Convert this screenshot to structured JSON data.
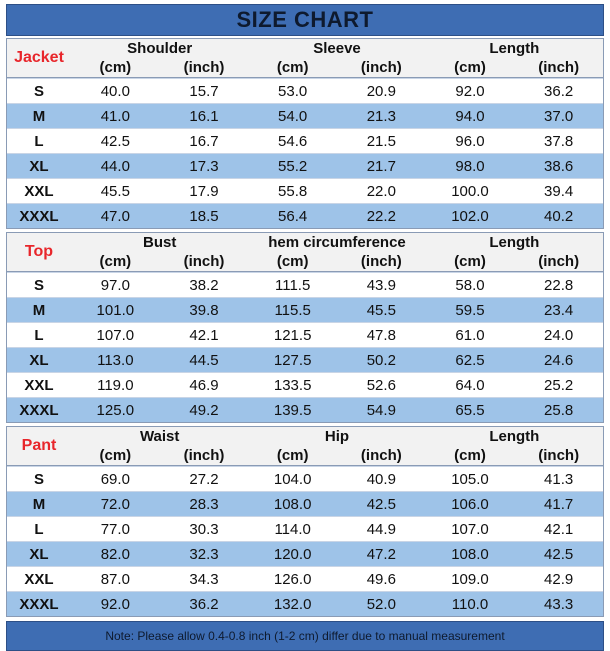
{
  "title": "SIZE CHART",
  "colors": {
    "header_blue": "#3e6db3",
    "row_blue": "#9ec3e8",
    "section_red": "#e8262b"
  },
  "sections": [
    {
      "label": "Jacket",
      "groups": [
        {
          "name": "Shoulder",
          "unit1": "(cm)",
          "unit2": "(inch)"
        },
        {
          "name": "Sleeve",
          "unit1": "(cm)",
          "unit2": "(inch)"
        },
        {
          "name": "Length",
          "unit1": "(cm)",
          "unit2": "(inch)"
        }
      ],
      "rows": [
        [
          "S",
          "40.0",
          "15.7",
          "53.0",
          "20.9",
          "92.0",
          "36.2"
        ],
        [
          "M",
          "41.0",
          "16.1",
          "54.0",
          "21.3",
          "94.0",
          "37.0"
        ],
        [
          "L",
          "42.5",
          "16.7",
          "54.6",
          "21.5",
          "96.0",
          "37.8"
        ],
        [
          "XL",
          "44.0",
          "17.3",
          "55.2",
          "21.7",
          "98.0",
          "38.6"
        ],
        [
          "XXL",
          "45.5",
          "17.9",
          "55.8",
          "22.0",
          "100.0",
          "39.4"
        ],
        [
          "XXXL",
          "47.0",
          "18.5",
          "56.4",
          "22.2",
          "102.0",
          "40.2"
        ]
      ]
    },
    {
      "label": "Top",
      "groups": [
        {
          "name": "Bust",
          "unit1": "(cm)",
          "unit2": "(inch)"
        },
        {
          "name": "hem circumference",
          "unit1": "(cm)",
          "unit2": "(inch)"
        },
        {
          "name": "Length",
          "unit1": "(cm)",
          "unit2": "(inch)"
        }
      ],
      "rows": [
        [
          "S",
          "97.0",
          "38.2",
          "111.5",
          "43.9",
          "58.0",
          "22.8"
        ],
        [
          "M",
          "101.0",
          "39.8",
          "115.5",
          "45.5",
          "59.5",
          "23.4"
        ],
        [
          "L",
          "107.0",
          "42.1",
          "121.5",
          "47.8",
          "61.0",
          "24.0"
        ],
        [
          "XL",
          "113.0",
          "44.5",
          "127.5",
          "50.2",
          "62.5",
          "24.6"
        ],
        [
          "XXL",
          "119.0",
          "46.9",
          "133.5",
          "52.6",
          "64.0",
          "25.2"
        ],
        [
          "XXXL",
          "125.0",
          "49.2",
          "139.5",
          "54.9",
          "65.5",
          "25.8"
        ]
      ]
    },
    {
      "label": "Pant",
      "groups": [
        {
          "name": "Waist",
          "unit1": "(cm)",
          "unit2": "(inch)"
        },
        {
          "name": "Hip",
          "unit1": "(cm)",
          "unit2": "(inch)"
        },
        {
          "name": "Length",
          "unit1": "(cm)",
          "unit2": "(inch)"
        }
      ],
      "rows": [
        [
          "S",
          "69.0",
          "27.2",
          "104.0",
          "40.9",
          "105.0",
          "41.3"
        ],
        [
          "M",
          "72.0",
          "28.3",
          "108.0",
          "42.5",
          "106.0",
          "41.7"
        ],
        [
          "L",
          "77.0",
          "30.3",
          "114.0",
          "44.9",
          "107.0",
          "42.1"
        ],
        [
          "XL",
          "82.0",
          "32.3",
          "120.0",
          "47.2",
          "108.0",
          "42.5"
        ],
        [
          "XXL",
          "87.0",
          "34.3",
          "126.0",
          "49.6",
          "109.0",
          "42.9"
        ],
        [
          "XXXL",
          "92.0",
          "36.2",
          "132.0",
          "52.0",
          "110.0",
          "43.3"
        ]
      ]
    }
  ],
  "note": "Note: Please allow 0.4-0.8 inch (1-2 cm) differ due to manual measurement"
}
